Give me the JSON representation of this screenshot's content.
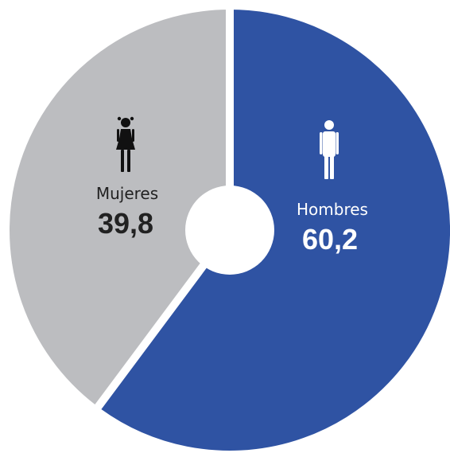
{
  "chart_data": {
    "type": "pie",
    "style": "donut",
    "title": "",
    "slices": [
      {
        "label": "Hombres",
        "value": 60.2,
        "value_text": "60,2",
        "color": "#2f53a3",
        "label_color": "#ffffff",
        "icon": "man-icon"
      },
      {
        "label": "Mujeres",
        "value": 39.8,
        "value_text": "39,8",
        "color": "#bcbdc0",
        "label_color": "#222222",
        "icon": "woman-icon"
      }
    ],
    "start": "top, clockwise",
    "legend": "none"
  }
}
